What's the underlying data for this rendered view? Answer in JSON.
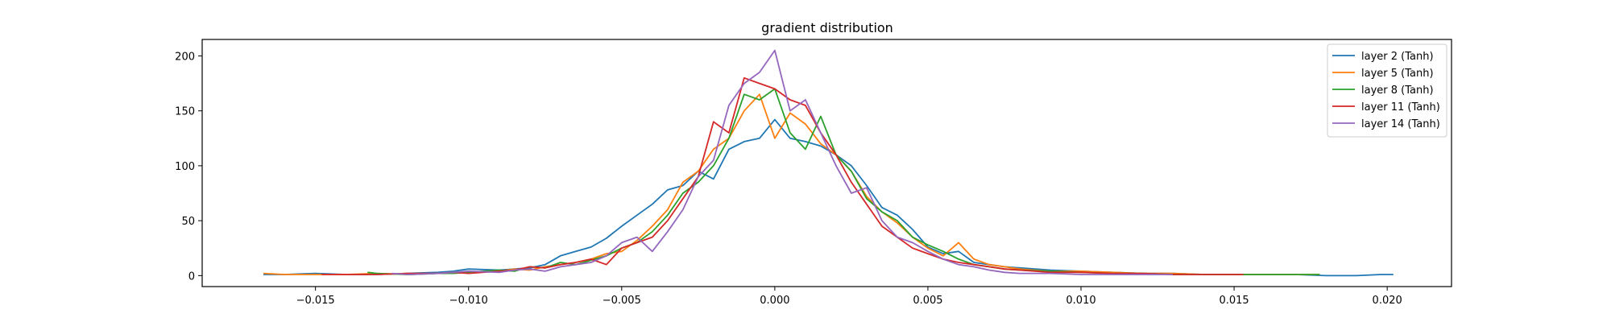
{
  "chart_data": {
    "type": "line",
    "title": "gradient distribution",
    "xlabel": "",
    "ylabel": "",
    "xlim": [
      -0.0187,
      0.0221
    ],
    "ylim": [
      -10,
      215
    ],
    "xticks": [
      -0.015,
      -0.01,
      -0.005,
      0.0,
      0.005,
      0.01,
      0.015,
      0.02
    ],
    "xtick_labels": [
      "−0.015",
      "−0.010",
      "−0.005",
      "0.000",
      "0.005",
      "0.010",
      "0.015",
      "0.020"
    ],
    "yticks": [
      0,
      50,
      100,
      150,
      200
    ],
    "ytick_labels": [
      "0",
      "50",
      "100",
      "150",
      "200"
    ],
    "grid": false,
    "legend_position": "top-right",
    "series": [
      {
        "name": "layer 2 (Tanh)",
        "color": "#1f77b4",
        "x": [
          -0.0167,
          -0.016,
          -0.015,
          -0.014,
          -0.013,
          -0.012,
          -0.011,
          -0.0105,
          -0.01,
          -0.009,
          -0.008,
          -0.0075,
          -0.007,
          -0.0065,
          -0.006,
          -0.0055,
          -0.005,
          -0.0045,
          -0.004,
          -0.0035,
          -0.003,
          -0.0025,
          -0.002,
          -0.0015,
          -0.001,
          -0.0005,
          0.0,
          0.0005,
          0.001,
          0.0015,
          0.002,
          0.0025,
          0.003,
          0.0035,
          0.004,
          0.0045,
          0.005,
          0.0055,
          0.006,
          0.0065,
          0.007,
          0.0075,
          0.008,
          0.009,
          0.01,
          0.011,
          0.012,
          0.013,
          0.014,
          0.015,
          0.016,
          0.017,
          0.018,
          0.019,
          0.0198,
          0.0202
        ],
        "y": [
          1,
          1,
          2,
          1,
          1,
          2,
          3,
          4,
          6,
          5,
          7,
          10,
          18,
          22,
          26,
          34,
          45,
          55,
          65,
          78,
          82,
          95,
          88,
          115,
          122,
          125,
          142,
          125,
          122,
          118,
          110,
          100,
          82,
          62,
          55,
          42,
          26,
          20,
          22,
          12,
          10,
          8,
          7,
          5,
          4,
          3,
          2,
          2,
          1,
          1,
          1,
          1,
          0,
          0,
          1,
          1
        ]
      },
      {
        "name": "layer 5 (Tanh)",
        "color": "#ff7f0e",
        "x": [
          -0.0167,
          -0.016,
          -0.015,
          -0.014,
          -0.013,
          -0.012,
          -0.011,
          -0.0105,
          -0.01,
          -0.009,
          -0.0085,
          -0.008,
          -0.0075,
          -0.007,
          -0.0065,
          -0.006,
          -0.0055,
          -0.005,
          -0.0045,
          -0.004,
          -0.0035,
          -0.003,
          -0.0025,
          -0.002,
          -0.0015,
          -0.001,
          -0.0005,
          0.0,
          0.0005,
          0.001,
          0.0015,
          0.002,
          0.0025,
          0.003,
          0.0035,
          0.004,
          0.0045,
          0.005,
          0.0055,
          0.006,
          0.0065,
          0.007,
          0.0075,
          0.008,
          0.009,
          0.01,
          0.011,
          0.012,
          0.013,
          0.014,
          0.015,
          0.016,
          0.017,
          0.0178
        ],
        "y": [
          2,
          1,
          1,
          1,
          2,
          1,
          2,
          3,
          3,
          4,
          6,
          5,
          8,
          10,
          12,
          15,
          20,
          22,
          32,
          45,
          60,
          85,
          95,
          115,
          125,
          150,
          165,
          125,
          148,
          138,
          120,
          110,
          95,
          72,
          58,
          48,
          35,
          25,
          18,
          30,
          15,
          10,
          8,
          6,
          4,
          4,
          3,
          2,
          2,
          1,
          1,
          1,
          1,
          1
        ]
      },
      {
        "name": "layer 8 (Tanh)",
        "color": "#2ca02c",
        "x": [
          -0.0133,
          -0.013,
          -0.012,
          -0.011,
          -0.0105,
          -0.01,
          -0.009,
          -0.0085,
          -0.008,
          -0.0075,
          -0.007,
          -0.0065,
          -0.006,
          -0.0055,
          -0.005,
          -0.0045,
          -0.004,
          -0.0035,
          -0.003,
          -0.0025,
          -0.002,
          -0.0015,
          -0.001,
          -0.0005,
          0.0,
          0.0005,
          0.001,
          0.0015,
          0.002,
          0.0025,
          0.003,
          0.0035,
          0.004,
          0.0045,
          0.005,
          0.0055,
          0.006,
          0.0065,
          0.007,
          0.0075,
          0.008,
          0.009,
          0.01,
          0.011,
          0.012,
          0.013,
          0.014,
          0.015,
          0.016,
          0.017,
          0.0178
        ],
        "y": [
          3,
          2,
          1,
          2,
          2,
          3,
          5,
          4,
          8,
          7,
          12,
          10,
          14,
          18,
          25,
          30,
          40,
          55,
          75,
          85,
          100,
          125,
          165,
          160,
          170,
          130,
          115,
          145,
          110,
          95,
          70,
          58,
          50,
          35,
          28,
          22,
          15,
          10,
          8,
          6,
          5,
          4,
          3,
          2,
          2,
          1,
          1,
          1,
          1,
          1,
          1
        ]
      },
      {
        "name": "layer 11 (Tanh)",
        "color": "#d62728",
        "x": [
          -0.0148,
          -0.014,
          -0.013,
          -0.012,
          -0.011,
          -0.0105,
          -0.01,
          -0.009,
          -0.0085,
          -0.008,
          -0.0075,
          -0.007,
          -0.0065,
          -0.006,
          -0.0055,
          -0.005,
          -0.0045,
          -0.004,
          -0.0035,
          -0.003,
          -0.0025,
          -0.002,
          -0.0015,
          -0.001,
          -0.0005,
          0.0,
          0.0005,
          0.001,
          0.0015,
          0.002,
          0.0025,
          0.003,
          0.0035,
          0.004,
          0.0045,
          0.005,
          0.0055,
          0.006,
          0.0065,
          0.007,
          0.0075,
          0.008,
          0.0085,
          0.009,
          0.01,
          0.011,
          0.012,
          0.013,
          0.014,
          0.015,
          0.0153
        ],
        "y": [
          1,
          1,
          1,
          2,
          2,
          3,
          2,
          4,
          5,
          8,
          7,
          10,
          12,
          15,
          10,
          25,
          30,
          35,
          50,
          70,
          90,
          140,
          130,
          180,
          175,
          170,
          160,
          155,
          130,
          110,
          85,
          65,
          45,
          35,
          25,
          20,
          15,
          12,
          10,
          8,
          6,
          5,
          4,
          3,
          3,
          2,
          2,
          1,
          1,
          1,
          1
        ]
      },
      {
        "name": "layer 14 (Tanh)",
        "color": "#9467bd",
        "x": [
          -0.0125,
          -0.012,
          -0.011,
          -0.0105,
          -0.01,
          -0.009,
          -0.0085,
          -0.008,
          -0.0075,
          -0.007,
          -0.0065,
          -0.006,
          -0.0055,
          -0.005,
          -0.0045,
          -0.004,
          -0.0035,
          -0.003,
          -0.0025,
          -0.002,
          -0.0015,
          -0.001,
          -0.0005,
          0.0,
          0.0005,
          0.001,
          0.0015,
          0.002,
          0.0025,
          0.003,
          0.0035,
          0.004,
          0.0045,
          0.005,
          0.0055,
          0.006,
          0.0065,
          0.007,
          0.0075,
          0.008,
          0.009,
          0.01,
          0.011,
          0.012,
          0.013
        ],
        "y": [
          2,
          1,
          2,
          3,
          4,
          3,
          5,
          6,
          4,
          8,
          10,
          12,
          18,
          30,
          35,
          22,
          40,
          60,
          90,
          105,
          155,
          175,
          185,
          205,
          150,
          160,
          130,
          100,
          75,
          80,
          50,
          35,
          30,
          22,
          15,
          10,
          8,
          5,
          3,
          2,
          2,
          1,
          1,
          1,
          1
        ]
      }
    ]
  }
}
